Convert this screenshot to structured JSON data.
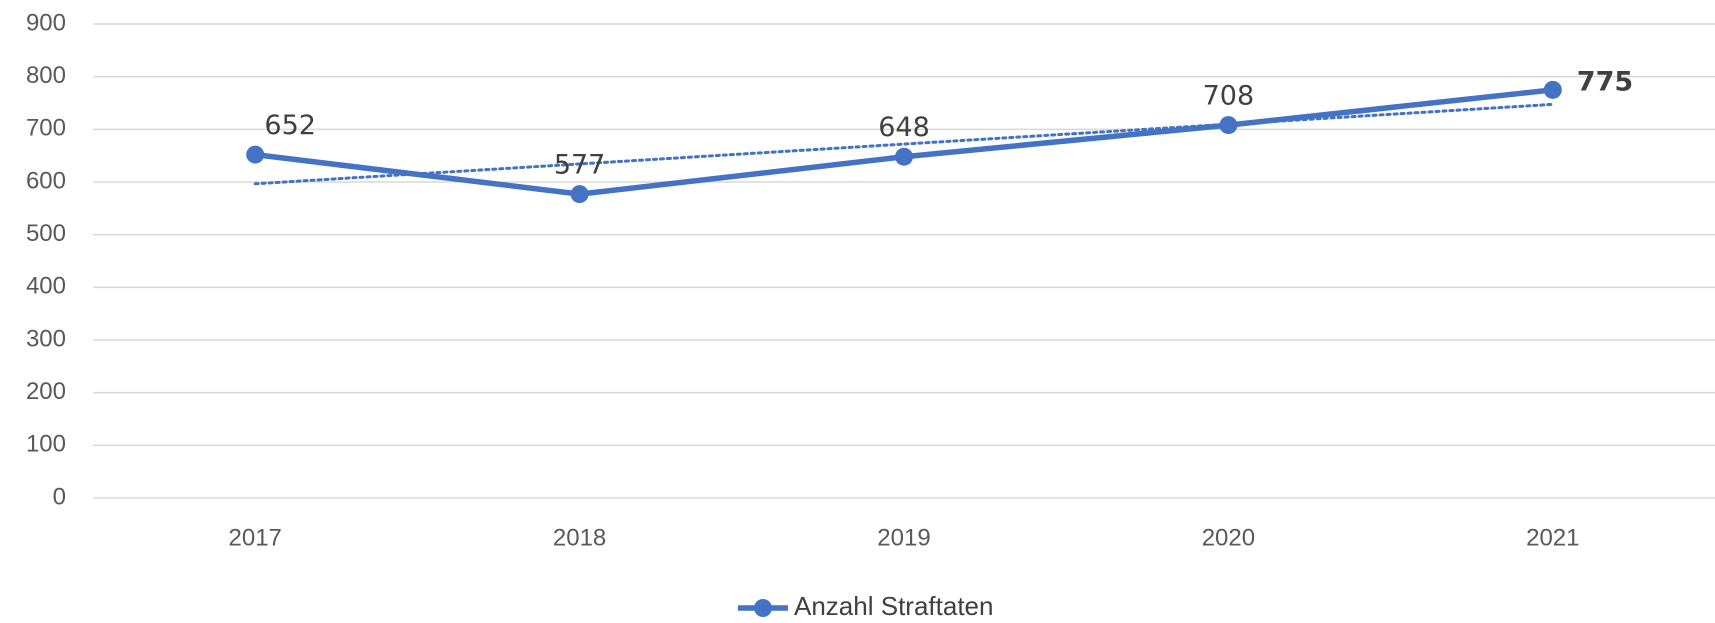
{
  "chart_data": {
    "type": "line",
    "categories": [
      "2017",
      "2018",
      "2019",
      "2020",
      "2021"
    ],
    "series": [
      {
        "name": "Anzahl Straftaten",
        "color": "#4472c4",
        "values": [
          652,
          577,
          648,
          708,
          775
        ]
      }
    ],
    "trendline": "linear",
    "ylim": [
      0,
      900
    ],
    "yticks": [
      0,
      100,
      200,
      300,
      400,
      500,
      600,
      700,
      800,
      900
    ],
    "grid": true,
    "legend": "bottom"
  }
}
